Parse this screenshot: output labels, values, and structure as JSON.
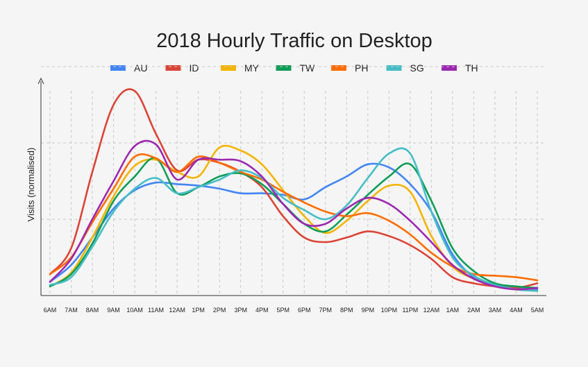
{
  "chart_data": {
    "type": "line",
    "title": "2018 Hourly Traffic on Desktop",
    "xlabel": "",
    "ylabel": "Visits (normalised)",
    "ylim": [
      0,
      1.5
    ],
    "grid": true,
    "legend_position": "top-center",
    "categories": [
      "6AM",
      "7AM",
      "8AM",
      "9AM",
      "10AM",
      "11AM",
      "12AM",
      "1PM",
      "2PM",
      "3PM",
      "4PM",
      "5PM",
      "6PM",
      "7PM",
      "8PM",
      "9PM",
      "10PM",
      "11PM",
      "12AM",
      "1AM",
      "2AM",
      "3AM",
      "4AM",
      "5AM"
    ],
    "series": [
      {
        "name": "AU",
        "color": "#4285f4",
        "values": [
          0.09,
          0.2,
          0.38,
          0.57,
          0.69,
          0.74,
          0.73,
          0.72,
          0.7,
          0.67,
          0.67,
          0.66,
          0.63,
          0.71,
          0.78,
          0.86,
          0.84,
          0.73,
          0.55,
          0.27,
          0.12,
          0.07,
          0.05,
          0.04
        ]
      },
      {
        "name": "ID",
        "color": "#db4437",
        "values": [
          0.14,
          0.31,
          0.81,
          1.25,
          1.34,
          1.06,
          0.82,
          0.89,
          0.87,
          0.81,
          0.71,
          0.52,
          0.38,
          0.35,
          0.38,
          0.42,
          0.39,
          0.33,
          0.24,
          0.12,
          0.08,
          0.06,
          0.05,
          0.08
        ]
      },
      {
        "name": "MY",
        "color": "#f4b400",
        "values": [
          0.06,
          0.15,
          0.38,
          0.65,
          0.85,
          0.89,
          0.81,
          0.78,
          0.97,
          0.95,
          0.86,
          0.69,
          0.52,
          0.41,
          0.49,
          0.62,
          0.72,
          0.68,
          0.39,
          0.19,
          0.11,
          0.06,
          0.04,
          0.03
        ]
      },
      {
        "name": "TW",
        "color": "#0f9d58",
        "values": [
          0.06,
          0.14,
          0.34,
          0.62,
          0.78,
          0.9,
          0.67,
          0.71,
          0.78,
          0.8,
          0.73,
          0.6,
          0.47,
          0.42,
          0.53,
          0.66,
          0.78,
          0.86,
          0.62,
          0.31,
          0.16,
          0.08,
          0.06,
          0.05
        ]
      },
      {
        "name": "PH",
        "color": "#ff6d00",
        "values": [
          0.14,
          0.25,
          0.48,
          0.7,
          0.91,
          0.9,
          0.81,
          0.91,
          0.87,
          0.81,
          0.76,
          0.68,
          0.61,
          0.55,
          0.52,
          0.54,
          0.49,
          0.4,
          0.28,
          0.19,
          0.14,
          0.13,
          0.12,
          0.1
        ]
      },
      {
        "name": "SG",
        "color": "#46bdc6",
        "values": [
          0.07,
          0.12,
          0.32,
          0.55,
          0.7,
          0.77,
          0.67,
          0.71,
          0.76,
          0.82,
          0.77,
          0.64,
          0.56,
          0.5,
          0.59,
          0.77,
          0.93,
          0.93,
          0.55,
          0.25,
          0.13,
          0.07,
          0.04,
          0.03
        ]
      },
      {
        "name": "TH",
        "color": "#9c27b0",
        "values": [
          0.09,
          0.24,
          0.5,
          0.75,
          0.98,
          0.99,
          0.76,
          0.89,
          0.89,
          0.88,
          0.78,
          0.6,
          0.47,
          0.47,
          0.57,
          0.64,
          0.6,
          0.49,
          0.35,
          0.2,
          0.11,
          0.06,
          0.04,
          0.05
        ]
      }
    ]
  }
}
